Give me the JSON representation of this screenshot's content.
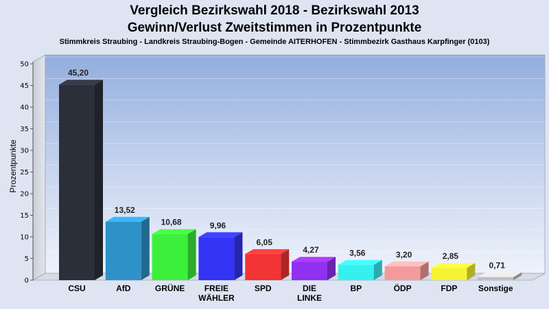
{
  "chart_data": {
    "type": "bar",
    "title": "Vergleich Bezirkswahl 2018 - Bezirkswahl 2013",
    "title2": "Gewinn/Verlust Zweitstimmen in Prozentpunkte",
    "subtitle": "Stimmkreis Straubing - Landkreis Straubing-Bogen - Gemeinde AITERHOFEN - Stimmbezirk Gasthaus Karpfinger (0103)",
    "ylabel": "Prozentpunkte",
    "xlabel": "",
    "ylim": [
      0,
      50
    ],
    "yticks": [
      0,
      5,
      10,
      15,
      20,
      25,
      30,
      35,
      40,
      45,
      50
    ],
    "grid": true,
    "categories": [
      [
        "CSU"
      ],
      [
        "AfD"
      ],
      [
        "GRÜNE"
      ],
      [
        "FREIE",
        "WÄHLER"
      ],
      [
        "SPD"
      ],
      [
        "DIE",
        "LINKE"
      ],
      [
        "BP"
      ],
      [
        "ÖDP"
      ],
      [
        "FDP"
      ],
      [
        "Sonstige"
      ]
    ],
    "values": [
      45.2,
      13.52,
      10.68,
      9.96,
      6.05,
      4.27,
      3.56,
      3.2,
      2.85,
      0.71
    ],
    "value_labels": [
      "45,20",
      "13,52",
      "10,68",
      "9,96",
      "6,05",
      "4,27",
      "3,56",
      "3,20",
      "2,85",
      "0,71"
    ],
    "colors": [
      "#2b2f3a",
      "#2e92c8",
      "#3bf03b",
      "#3434f5",
      "#f23434",
      "#9030f0",
      "#36f0f0",
      "#f59a9a",
      "#f5f535",
      "#bfbfbf"
    ]
  }
}
